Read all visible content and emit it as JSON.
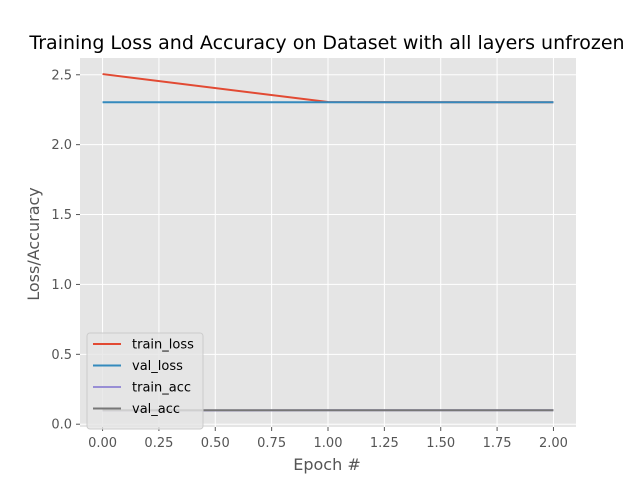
{
  "chart_data": {
    "type": "line",
    "title": "Training Loss and Accuracy on Dataset with all layers unfrozen",
    "xlabel": "Epoch #",
    "ylabel": "Loss/Accuracy",
    "x": [
      0,
      1,
      2
    ],
    "xlim": [
      -0.1,
      2.1
    ],
    "ylim": [
      -0.02,
      2.62
    ],
    "xticks": [
      0.0,
      0.25,
      0.5,
      0.75,
      1.0,
      1.25,
      1.5,
      1.75,
      2.0
    ],
    "xtick_labels": [
      "0.00",
      "0.25",
      "0.50",
      "0.75",
      "1.00",
      "1.25",
      "1.50",
      "1.75",
      "2.00"
    ],
    "yticks": [
      0.0,
      0.5,
      1.0,
      1.5,
      2.0,
      2.5
    ],
    "ytick_labels": [
      "0.0",
      "0.5",
      "1.0",
      "1.5",
      "2.0",
      "2.5"
    ],
    "grid": true,
    "legend_position": "lower-left",
    "series": [
      {
        "name": "train_loss",
        "values": [
          2.505,
          2.305,
          2.303
        ],
        "color": "#E24A33"
      },
      {
        "name": "val_loss",
        "values": [
          2.303,
          2.303,
          2.303
        ],
        "color": "#348ABD"
      },
      {
        "name": "train_acc",
        "values": [
          0.098,
          0.1,
          0.1
        ],
        "color": "#988ED5"
      },
      {
        "name": "val_acc",
        "values": [
          0.1,
          0.1,
          0.1
        ],
        "color": "#777777"
      }
    ]
  },
  "style": {
    "plot_background": "#E5E5E5",
    "grid_color": "#FFFFFF",
    "legend_background": "#E5E5E5",
    "legend_border": "#CCCCCC"
  }
}
